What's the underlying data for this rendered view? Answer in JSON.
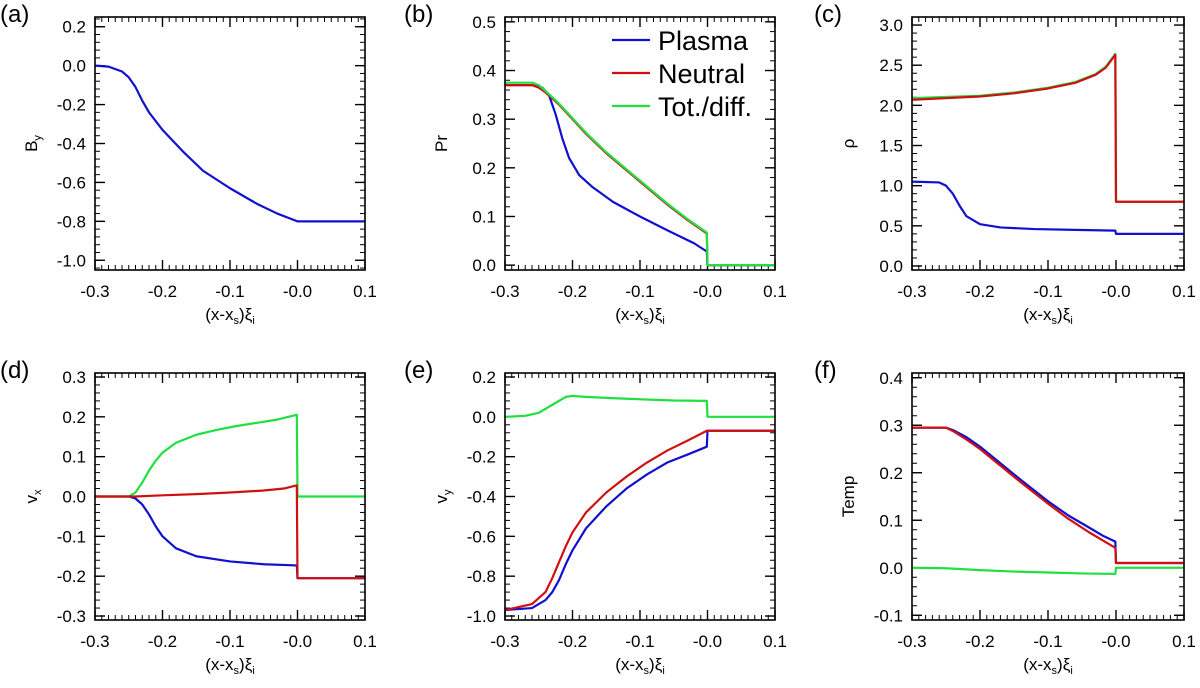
{
  "colors": {
    "plasma": "#1010d0",
    "neutral": "#d01010",
    "total": "#20e040"
  },
  "chart_data": [
    {
      "id": "a",
      "type": "line",
      "panel_label": "(a)",
      "xlabel": {
        "pre": "(x-x",
        "sub": "s",
        "mid": ")ξ",
        "sub2": "i"
      },
      "ylabel": {
        "main": "B",
        "sub": "y"
      },
      "xlim": [
        -0.3,
        0.1
      ],
      "ylim": [
        -1.05,
        0.25
      ],
      "xticks": [
        -0.3,
        -0.2,
        -0.1,
        -0.0,
        0.1
      ],
      "xtick_labels": [
        "-0.3",
        "-0.2",
        "-0.1",
        "-0.0",
        "0.1"
      ],
      "yticks": [
        -1.0,
        -0.8,
        -0.6,
        -0.4,
        -0.2,
        0.0,
        0.2
      ],
      "ytick_labels": [
        "-1.0",
        "-0.8",
        "-0.6",
        "-0.4",
        "-0.2",
        "0.0",
        "0.2"
      ],
      "series": [
        {
          "name": "Plasma",
          "color_key": "plasma",
          "x": [
            -0.3,
            -0.28,
            -0.26,
            -0.25,
            -0.24,
            -0.23,
            -0.22,
            -0.2,
            -0.17,
            -0.14,
            -0.1,
            -0.06,
            -0.03,
            0.0,
            0.02,
            0.05,
            0.1
          ],
          "y": [
            0.0,
            -0.005,
            -0.03,
            -0.06,
            -0.11,
            -0.18,
            -0.24,
            -0.33,
            -0.44,
            -0.54,
            -0.63,
            -0.71,
            -0.76,
            -0.8,
            -0.8,
            -0.8,
            -0.8
          ]
        }
      ]
    },
    {
      "id": "b",
      "type": "line",
      "panel_label": "(b)",
      "xlabel": {
        "pre": "(x-x",
        "sub": "s",
        "mid": ")ξ",
        "sub2": "i"
      },
      "ylabel": {
        "main": "Pr",
        "sub": ""
      },
      "xlim": [
        -0.3,
        0.1
      ],
      "ylim": [
        -0.01,
        0.51
      ],
      "xticks": [
        -0.3,
        -0.2,
        -0.1,
        -0.0,
        0.1
      ],
      "xtick_labels": [
        "-0.3",
        "-0.2",
        "-0.1",
        "-0.0",
        "0.1"
      ],
      "yticks": [
        0.0,
        0.1,
        0.2,
        0.3,
        0.4,
        0.5
      ],
      "ytick_labels": [
        "0.0",
        "0.1",
        "0.2",
        "0.3",
        "0.4",
        "0.5"
      ],
      "legend": {
        "position": "top-right",
        "entries": [
          {
            "label": "Plasma",
            "color_key": "plasma"
          },
          {
            "label": "Neutral",
            "color_key": "neutral"
          },
          {
            "label": "Tot./diff.",
            "color_key": "total"
          }
        ]
      },
      "series": [
        {
          "name": "Plasma",
          "color_key": "plasma",
          "x": [
            -0.3,
            -0.26,
            -0.245,
            -0.235,
            -0.225,
            -0.215,
            -0.205,
            -0.19,
            -0.17,
            -0.14,
            -0.1,
            -0.06,
            -0.02,
            -0.001,
            0.0,
            0.05,
            0.1
          ],
          "y": [
            0.37,
            0.37,
            0.365,
            0.35,
            0.31,
            0.26,
            0.22,
            0.185,
            0.16,
            0.13,
            0.1,
            0.072,
            0.045,
            0.028,
            0.0,
            0.0,
            0.0
          ]
        },
        {
          "name": "Neutral",
          "color_key": "neutral",
          "x": [
            -0.3,
            -0.26,
            -0.25,
            -0.24,
            -0.22,
            -0.2,
            -0.18,
            -0.15,
            -0.12,
            -0.09,
            -0.06,
            -0.03,
            -0.001,
            0.0,
            0.05,
            0.1
          ],
          "y": [
            0.37,
            0.37,
            0.365,
            0.355,
            0.33,
            0.3,
            0.27,
            0.23,
            0.195,
            0.16,
            0.125,
            0.093,
            0.065,
            0.0,
            0.0,
            0.0
          ]
        },
        {
          "name": "Tot./diff.",
          "color_key": "total",
          "x": [
            -0.3,
            -0.26,
            -0.25,
            -0.24,
            -0.22,
            -0.2,
            -0.18,
            -0.15,
            -0.12,
            -0.09,
            -0.06,
            -0.03,
            -0.001,
            0.0,
            0.05,
            0.1
          ],
          "y": [
            0.375,
            0.375,
            0.37,
            0.358,
            0.332,
            0.302,
            0.272,
            0.232,
            0.197,
            0.162,
            0.127,
            0.095,
            0.067,
            0.0,
            0.0,
            0.0
          ]
        }
      ]
    },
    {
      "id": "c",
      "type": "line",
      "panel_label": "(c)",
      "xlabel": {
        "pre": "(x-x",
        "sub": "s",
        "mid": ")ξ",
        "sub2": "i"
      },
      "ylabel": {
        "main": "ρ",
        "sub": ""
      },
      "xlim": [
        -0.3,
        0.1
      ],
      "ylim": [
        -0.05,
        3.1
      ],
      "xticks": [
        -0.3,
        -0.2,
        -0.1,
        -0.0,
        0.1
      ],
      "xtick_labels": [
        "-0.3",
        "-0.2",
        "-0.1",
        "-0.0",
        "0.1"
      ],
      "yticks": [
        0.0,
        0.5,
        1.0,
        1.5,
        2.0,
        2.5,
        3.0
      ],
      "ytick_labels": [
        "0.0",
        "0.5",
        "1.0",
        "1.5",
        "2.0",
        "2.5",
        "3.0"
      ],
      "series": [
        {
          "name": "Plasma",
          "color_key": "plasma",
          "x": [
            -0.3,
            -0.26,
            -0.25,
            -0.24,
            -0.23,
            -0.22,
            -0.2,
            -0.17,
            -0.12,
            -0.06,
            -0.001,
            0.0,
            0.05,
            0.1
          ],
          "y": [
            1.05,
            1.04,
            1.0,
            0.9,
            0.75,
            0.62,
            0.52,
            0.48,
            0.46,
            0.45,
            0.44,
            0.4,
            0.4,
            0.4
          ]
        },
        {
          "name": "Tot./diff.",
          "color_key": "total",
          "x": [
            -0.3,
            -0.2,
            -0.15,
            -0.1,
            -0.06,
            -0.03,
            -0.015,
            -0.001,
            0.0,
            0.05,
            0.1
          ],
          "y": [
            2.09,
            2.12,
            2.16,
            2.22,
            2.29,
            2.39,
            2.48,
            2.64,
            0.8,
            0.8,
            0.8
          ]
        },
        {
          "name": "Neutral",
          "color_key": "neutral",
          "x": [
            -0.3,
            -0.2,
            -0.15,
            -0.1,
            -0.06,
            -0.03,
            -0.015,
            -0.001,
            0.0,
            0.05,
            0.1
          ],
          "y": [
            2.07,
            2.11,
            2.15,
            2.21,
            2.28,
            2.38,
            2.47,
            2.63,
            0.8,
            0.8,
            0.8
          ]
        }
      ]
    },
    {
      "id": "d",
      "type": "line",
      "panel_label": "(d)",
      "xlabel": {
        "pre": "(x-x",
        "sub": "s",
        "mid": ")ξ",
        "sub2": "i"
      },
      "ylabel": {
        "main": "v",
        "sub": "x"
      },
      "xlim": [
        -0.3,
        0.1
      ],
      "ylim": [
        -0.31,
        0.31
      ],
      "xticks": [
        -0.3,
        -0.2,
        -0.1,
        -0.0,
        0.1
      ],
      "xtick_labels": [
        "-0.3",
        "-0.2",
        "-0.1",
        "-0.0",
        "0.1"
      ],
      "yticks": [
        -0.3,
        -0.2,
        -0.1,
        0.0,
        0.1,
        0.2,
        0.3
      ],
      "ytick_labels": [
        "-0.3",
        "-0.2",
        "-0.1",
        "0.0",
        "0.1",
        "0.2",
        "0.3"
      ],
      "series": [
        {
          "name": "Plasma",
          "color_key": "plasma",
          "x": [
            -0.3,
            -0.25,
            -0.24,
            -0.23,
            -0.22,
            -0.21,
            -0.2,
            -0.18,
            -0.15,
            -0.1,
            -0.05,
            -0.001,
            0.0,
            0.05,
            0.1
          ],
          "y": [
            0.0,
            0.0,
            -0.005,
            -0.02,
            -0.045,
            -0.075,
            -0.1,
            -0.13,
            -0.15,
            -0.163,
            -0.17,
            -0.173,
            -0.205,
            -0.205,
            -0.205
          ]
        },
        {
          "name": "Tot./diff.",
          "color_key": "total",
          "x": [
            -0.3,
            -0.25,
            -0.24,
            -0.23,
            -0.22,
            -0.21,
            -0.2,
            -0.18,
            -0.15,
            -0.12,
            -0.09,
            -0.06,
            -0.03,
            -0.001,
            0.0,
            0.05,
            0.1
          ],
          "y": [
            0.0,
            0.0,
            0.01,
            0.035,
            0.065,
            0.09,
            0.11,
            0.135,
            0.155,
            0.167,
            0.177,
            0.185,
            0.193,
            0.205,
            0.0,
            0.0,
            0.0
          ]
        },
        {
          "name": "Neutral",
          "color_key": "neutral",
          "x": [
            -0.3,
            -0.24,
            -0.2,
            -0.15,
            -0.1,
            -0.05,
            -0.02,
            -0.001,
            0.0,
            0.05,
            0.1
          ],
          "y": [
            0.0,
            0.0,
            0.003,
            0.006,
            0.01,
            0.015,
            0.02,
            0.028,
            -0.205,
            -0.205,
            -0.205
          ]
        }
      ]
    },
    {
      "id": "e",
      "type": "line",
      "panel_label": "(e)",
      "xlabel": {
        "pre": "(x-x",
        "sub": "s",
        "mid": ")ξ",
        "sub2": "i"
      },
      "ylabel": {
        "main": "v",
        "sub": "y"
      },
      "xlim": [
        -0.3,
        0.1
      ],
      "ylim": [
        -1.02,
        0.22
      ],
      "xticks": [
        -0.3,
        -0.2,
        -0.1,
        -0.0,
        0.1
      ],
      "xtick_labels": [
        "-0.3",
        "-0.2",
        "-0.1",
        "-0.0",
        "0.1"
      ],
      "yticks": [
        -1.0,
        -0.8,
        -0.6,
        -0.4,
        -0.2,
        0.0,
        0.2
      ],
      "ytick_labels": [
        "-1.0",
        "-0.8",
        "-0.6",
        "-0.4",
        "-0.2",
        "0.0",
        "0.2"
      ],
      "series": [
        {
          "name": "Tot./diff.",
          "color_key": "total",
          "x": [
            -0.3,
            -0.27,
            -0.25,
            -0.23,
            -0.21,
            -0.2,
            -0.18,
            -0.15,
            -0.1,
            -0.05,
            -0.001,
            0.0,
            0.05,
            0.1
          ],
          "y": [
            0.0,
            0.005,
            0.02,
            0.06,
            0.1,
            0.105,
            0.1,
            0.095,
            0.088,
            0.082,
            0.08,
            0.0,
            0.0,
            0.0
          ]
        },
        {
          "name": "Plasma",
          "color_key": "plasma",
          "x": [
            -0.3,
            -0.26,
            -0.24,
            -0.23,
            -0.22,
            -0.21,
            -0.2,
            -0.18,
            -0.15,
            -0.12,
            -0.09,
            -0.06,
            -0.03,
            -0.001,
            0.0,
            0.05,
            0.1
          ],
          "y": [
            -0.97,
            -0.96,
            -0.92,
            -0.88,
            -0.82,
            -0.74,
            -0.67,
            -0.56,
            -0.45,
            -0.36,
            -0.29,
            -0.23,
            -0.19,
            -0.15,
            -0.07,
            -0.07,
            -0.07
          ]
        },
        {
          "name": "Neutral",
          "color_key": "neutral",
          "x": [
            -0.3,
            -0.26,
            -0.24,
            -0.23,
            -0.22,
            -0.21,
            -0.2,
            -0.18,
            -0.15,
            -0.12,
            -0.09,
            -0.06,
            -0.03,
            -0.001,
            0.0,
            0.05,
            0.1
          ],
          "y": [
            -0.97,
            -0.94,
            -0.88,
            -0.81,
            -0.73,
            -0.65,
            -0.58,
            -0.48,
            -0.38,
            -0.3,
            -0.23,
            -0.17,
            -0.12,
            -0.07,
            -0.07,
            -0.07,
            -0.07
          ]
        }
      ]
    },
    {
      "id": "f",
      "type": "line",
      "panel_label": "(f)",
      "xlabel": {
        "pre": "(x-x",
        "sub": "s",
        "mid": ")ξ",
        "sub2": "i"
      },
      "ylabel": {
        "main": "Temp",
        "sub": ""
      },
      "xlim": [
        -0.3,
        0.1
      ],
      "ylim": [
        -0.11,
        0.41
      ],
      "xticks": [
        -0.3,
        -0.2,
        -0.1,
        -0.0,
        0.1
      ],
      "xtick_labels": [
        "-0.3",
        "-0.2",
        "-0.1",
        "-0.0",
        "0.1"
      ],
      "yticks": [
        -0.1,
        0.0,
        0.1,
        0.2,
        0.3,
        0.4
      ],
      "ytick_labels": [
        "-0.1",
        "0.0",
        "0.1",
        "0.2",
        "0.3",
        "0.4"
      ],
      "series": [
        {
          "name": "Tot./diff.",
          "color_key": "total",
          "x": [
            -0.3,
            -0.25,
            -0.2,
            -0.15,
            -0.1,
            -0.05,
            -0.001,
            0.0,
            0.05,
            0.1
          ],
          "y": [
            0.0,
            -0.001,
            -0.005,
            -0.008,
            -0.01,
            -0.012,
            -0.013,
            0.0,
            0.0,
            0.0
          ]
        },
        {
          "name": "Plasma",
          "color_key": "plasma",
          "x": [
            -0.3,
            -0.25,
            -0.24,
            -0.22,
            -0.2,
            -0.17,
            -0.14,
            -0.1,
            -0.07,
            -0.04,
            -0.02,
            -0.001,
            0.0,
            0.05,
            0.1
          ],
          "y": [
            0.295,
            0.295,
            0.29,
            0.275,
            0.255,
            0.22,
            0.185,
            0.14,
            0.11,
            0.085,
            0.068,
            0.055,
            0.01,
            0.01,
            0.01
          ]
        },
        {
          "name": "Neutral",
          "color_key": "neutral",
          "x": [
            -0.3,
            -0.25,
            -0.24,
            -0.22,
            -0.2,
            -0.17,
            -0.14,
            -0.1,
            -0.07,
            -0.04,
            -0.02,
            -0.001,
            0.0,
            0.05,
            0.1
          ],
          "y": [
            0.295,
            0.295,
            0.288,
            0.27,
            0.25,
            0.215,
            0.18,
            0.135,
            0.103,
            0.075,
            0.058,
            0.042,
            0.01,
            0.01,
            0.01
          ]
        }
      ]
    }
  ]
}
